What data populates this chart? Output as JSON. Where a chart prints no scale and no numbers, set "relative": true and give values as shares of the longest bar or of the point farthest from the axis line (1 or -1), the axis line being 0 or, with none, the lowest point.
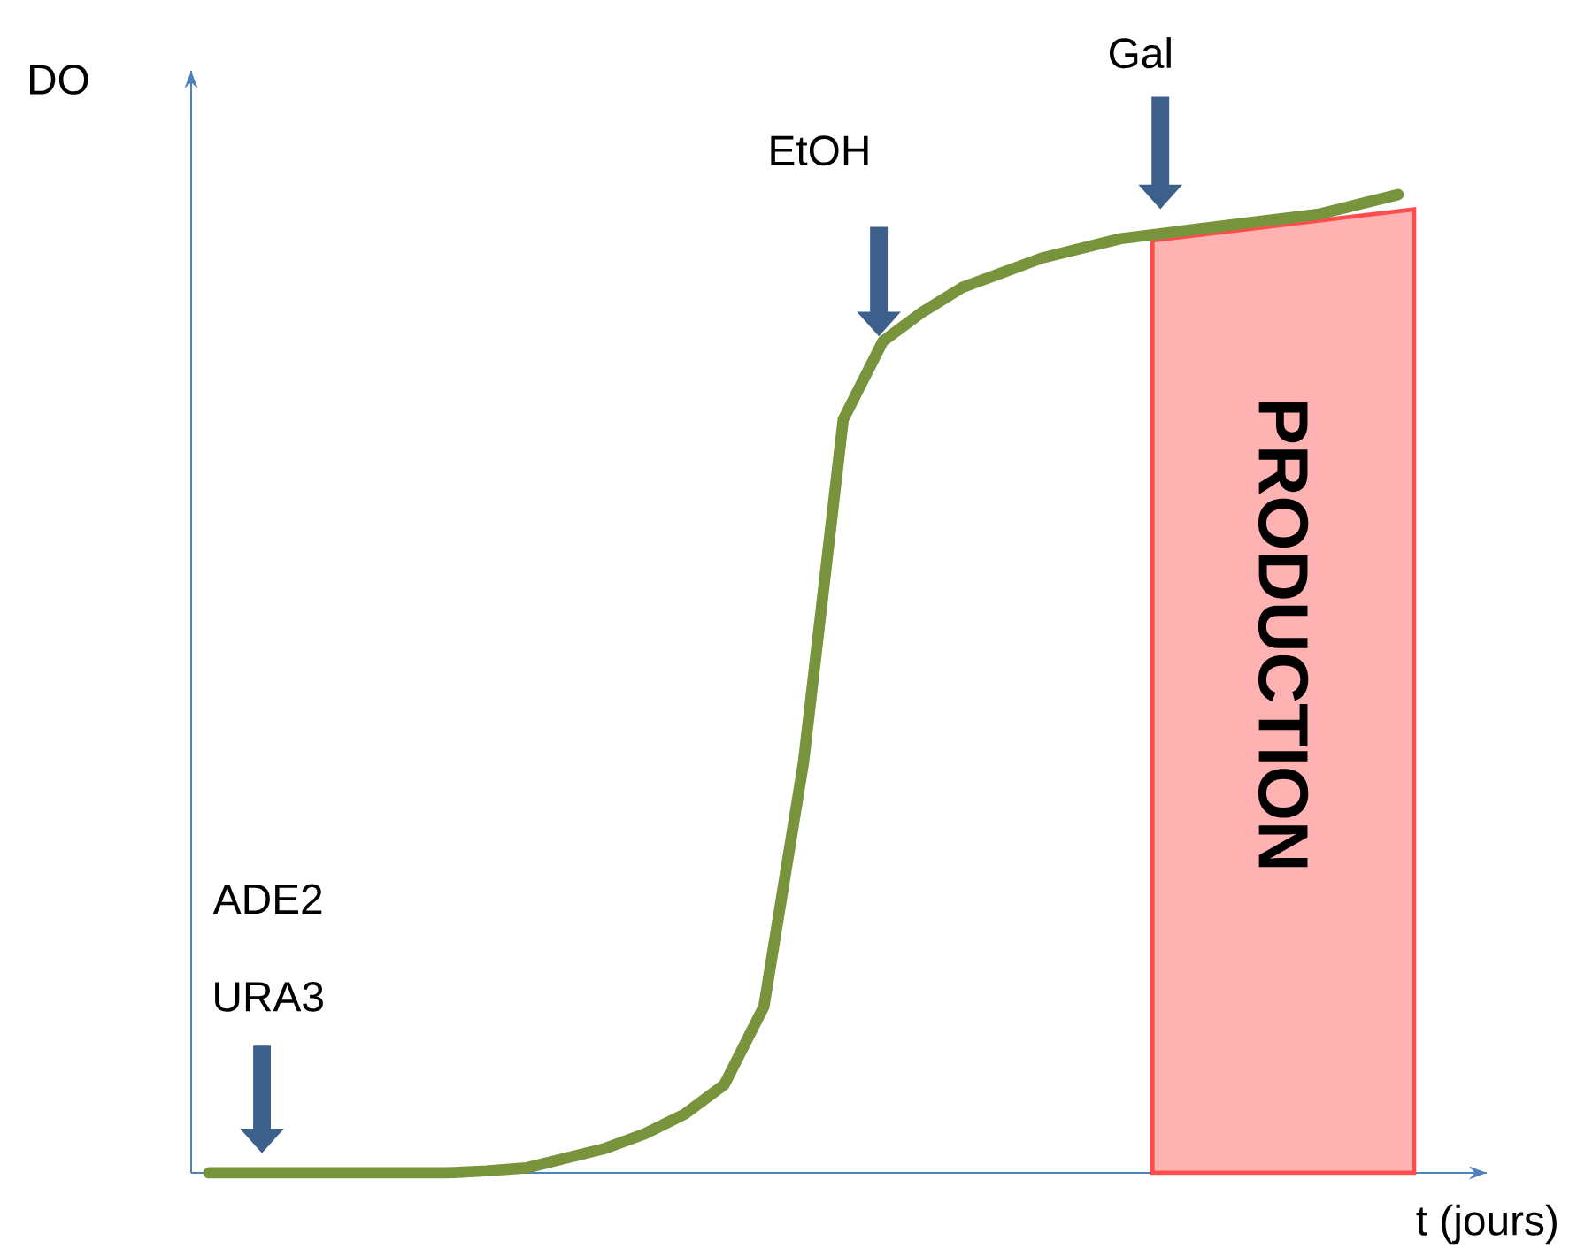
{
  "chart_data": {
    "type": "line",
    "relative": true,
    "xlabel": "t (jours)",
    "ylabel": "DO",
    "categories": [
      null,
      null,
      null,
      null,
      null,
      null,
      null,
      null,
      null,
      null,
      null,
      null,
      null,
      null,
      null,
      null,
      null,
      null,
      null,
      null,
      null,
      null,
      null,
      null,
      null,
      null,
      null,
      null,
      null,
      null,
      null
    ],
    "series": [
      {
        "color": "#77933c",
        "values": [
          0,
          0,
          0,
          0,
          0,
          0,
          0,
          0.002,
          0.005,
          0.015,
          0.025,
          0.04,
          0.06,
          0.09,
          0.17,
          0.42,
          0.77,
          0.85,
          0.88,
          0.905,
          0.92,
          0.935,
          0.945,
          0.955,
          0.96,
          0.965,
          0.97,
          0.975,
          0.98,
          0.99,
          1.0
        ]
      }
    ],
    "annotations": [
      "ADE2",
      "URA3",
      "EtOH",
      "Gal",
      "PRODUCTION"
    ],
    "marker": "none",
    "line_style": "solid"
  }
}
